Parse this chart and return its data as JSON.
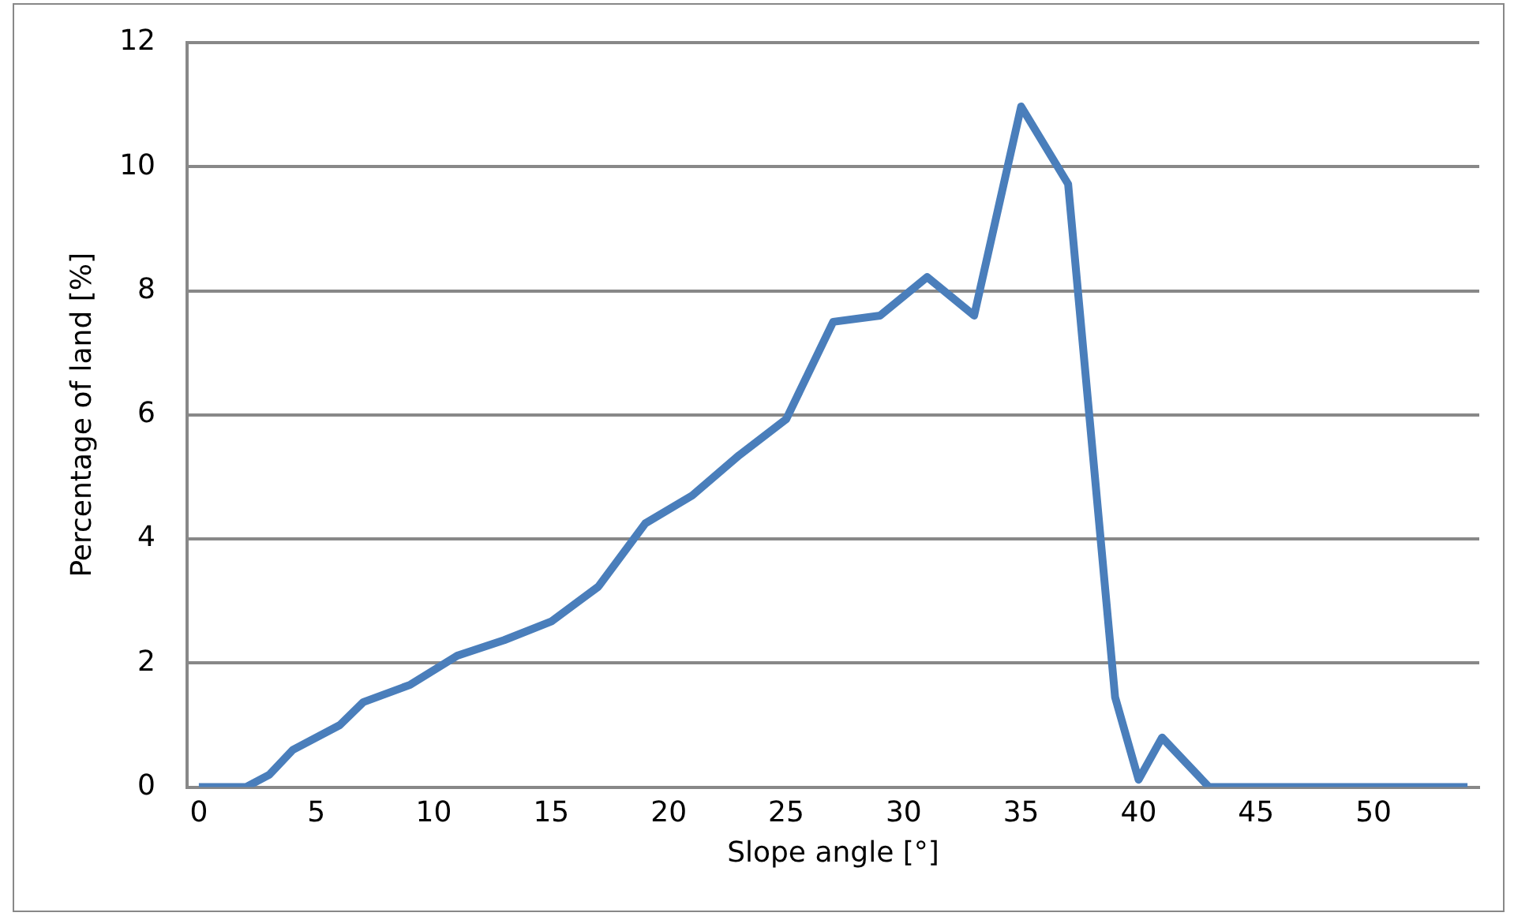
{
  "chart_data": {
    "type": "line",
    "xlabel": "Slope angle [°]",
    "ylabel": "Percentage of land [%]",
    "x": [
      0,
      2,
      3,
      4,
      6,
      7,
      9,
      11,
      13,
      15,
      17,
      19,
      21,
      23,
      25,
      27,
      29,
      31,
      33,
      35,
      37,
      39,
      40,
      41,
      43,
      54
    ],
    "series": [
      {
        "color": "#4a7ebb",
        "values": [
          0,
          0,
          0.2,
          0.6,
          1.0,
          1.37,
          1.65,
          2.12,
          2.37,
          2.67,
          3.23,
          4.25,
          4.7,
          5.35,
          5.93,
          7.5,
          7.6,
          8.22,
          7.6,
          10.97,
          9.72,
          1.45,
          0.12,
          0.8,
          0,
          0
        ]
      }
    ],
    "xlim": [
      -0.5,
      54.5
    ],
    "xticks": [
      0,
      5,
      10,
      15,
      20,
      25,
      30,
      35,
      40,
      45,
      50
    ],
    "ylim": [
      0,
      12
    ],
    "yticks": [
      0,
      2,
      4,
      6,
      8,
      10,
      12
    ],
    "grid": "y",
    "legend": false,
    "marker": "none",
    "line_style": "solid"
  }
}
